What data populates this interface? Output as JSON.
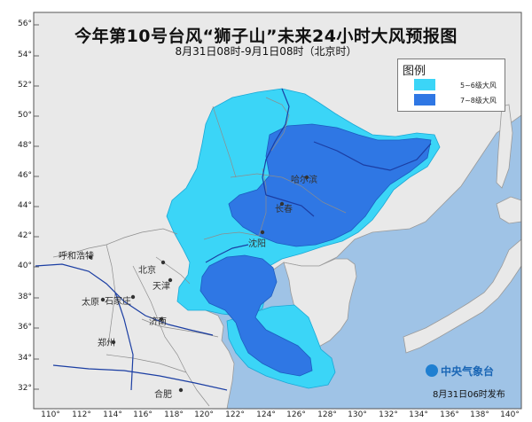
{
  "title": "今年第10号台风“狮子山”未来24小时大风预报图",
  "subtitle": "8月31日08时-9月1日08时（北京时）",
  "legend": {
    "title": "图例",
    "items": [
      {
        "label": "5~6级大风",
        "color": "#3bd5f7"
      },
      {
        "label": "7~8级大风",
        "color": "#2f77e4"
      }
    ]
  },
  "lat_labels": [
    "56°",
    "54°",
    "52°",
    "50°",
    "48°",
    "46°",
    "44°",
    "42°",
    "40°",
    "38°",
    "36°",
    "34°",
    "32°"
  ],
  "lon_labels": [
    "110°",
    "112°",
    "114°",
    "116°",
    "118°",
    "120°",
    "122°",
    "124°",
    "126°",
    "128°",
    "130°",
    "132°",
    "134°",
    "136°",
    "138°",
    "140°"
  ],
  "cities": [
    "呼和浩特",
    "北京",
    "天津",
    "太原",
    "石家庄",
    "济南",
    "长春",
    "沈阳",
    "哈尔滨",
    "合肥",
    "郑州"
  ],
  "publisher": "中央气象台",
  "release_time": "8月31日06时发布",
  "colors": {
    "land": "#e9e9e9",
    "sea": "#9fc3e6",
    "border": "#9a9a9a",
    "river": "#1b3ea3",
    "wind56": "#3bd5f7",
    "wind78": "#2f77e4"
  }
}
